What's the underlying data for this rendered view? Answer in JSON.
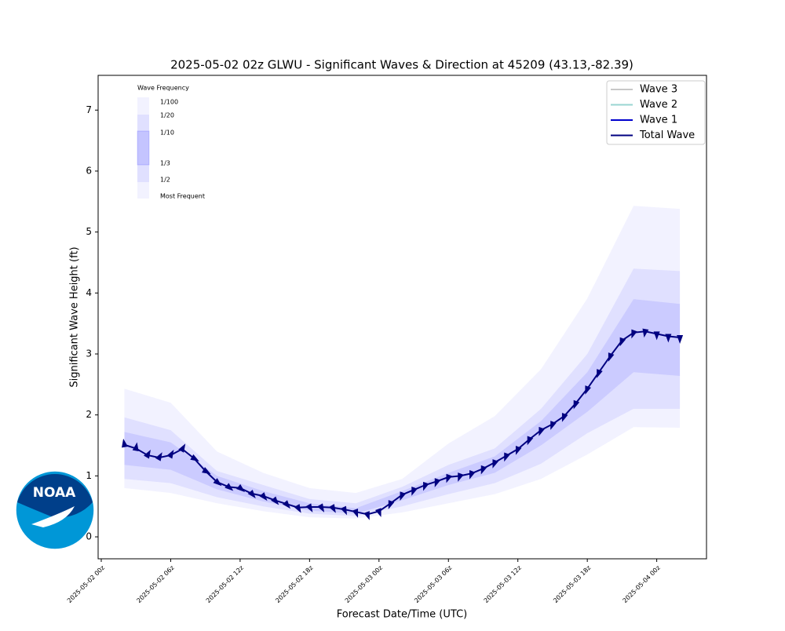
{
  "chart_data": {
    "type": "line",
    "title": "2025-05-02 02z GLWU - Significant Waves & Direction at 45209 (43.13,-82.39)",
    "y_label": "Significant Wave Height (ft)",
    "x_label": "Forecast Date/Time (UTC)",
    "xlim": [
      -0.27,
      52.3
    ],
    "ylim": [
      -0.36,
      7.57
    ],
    "xticks": [
      {
        "value": 0,
        "label": "2025-05-02 00z"
      },
      {
        "value": 6,
        "label": "2025-05-02 06z"
      },
      {
        "value": 12,
        "label": "2025-05-02 12z"
      },
      {
        "value": 18,
        "label": "2025-05-02 18z"
      },
      {
        "value": 24,
        "label": "2025-05-03 00z"
      },
      {
        "value": 30,
        "label": "2025-05-03 06z"
      },
      {
        "value": 36,
        "label": "2025-05-03 12z"
      },
      {
        "value": 42,
        "label": "2025-05-03 18z"
      },
      {
        "value": 48,
        "label": "2025-05-04 00z"
      }
    ],
    "yticks": [
      0,
      1,
      2,
      3,
      4,
      5,
      6,
      7
    ],
    "x": [
      2,
      3,
      4,
      5,
      6,
      7,
      8,
      9,
      10,
      11,
      12,
      13,
      14,
      15,
      16,
      17,
      18,
      19,
      20,
      21,
      22,
      23,
      24,
      25,
      26,
      27,
      28,
      29,
      30,
      31,
      32,
      33,
      34,
      35,
      36,
      37,
      38,
      39,
      40,
      41,
      42,
      43,
      44,
      45,
      46,
      47,
      48,
      49,
      50
    ],
    "series": [
      {
        "name": "Total Wave",
        "color": "#000080",
        "values": [
          1.51,
          1.45,
          1.34,
          1.3,
          1.34,
          1.44,
          1.29,
          1.08,
          0.9,
          0.82,
          0.8,
          0.71,
          0.67,
          0.6,
          0.54,
          0.48,
          0.49,
          0.49,
          0.48,
          0.45,
          0.41,
          0.37,
          0.42,
          0.55,
          0.69,
          0.77,
          0.85,
          0.91,
          0.98,
          1.0,
          1.04,
          1.12,
          1.22,
          1.33,
          1.44,
          1.6,
          1.75,
          1.85,
          1.98,
          2.19,
          2.43,
          2.7,
          2.97,
          3.22,
          3.35,
          3.37,
          3.33,
          3.29,
          3.27
        ],
        "directions": [
          350,
          10,
          30,
          30,
          30,
          30,
          120,
          120,
          130,
          130,
          130,
          140,
          140,
          140,
          140,
          150,
          150,
          150,
          150,
          155,
          160,
          160,
          160,
          200,
          200,
          200,
          200,
          200,
          200,
          200,
          200,
          200,
          200,
          200,
          200,
          200,
          200,
          200,
          200,
          200,
          200,
          200,
          200,
          200,
          200,
          190,
          180,
          180,
          180
        ]
      }
    ],
    "legend_items": [
      {
        "name": "Wave 3",
        "color": "#c8c8c8"
      },
      {
        "name": "Wave 2",
        "color": "#99d5d2"
      },
      {
        "name": "Wave 1",
        "color": "#0000cd"
      },
      {
        "name": "Total Wave",
        "color": "#000080"
      }
    ],
    "legend_position": "upper right",
    "band_x": [
      2,
      6,
      10,
      14,
      18,
      22,
      26,
      30,
      34,
      38,
      42,
      46,
      50
    ],
    "bands": [
      {
        "color": "#0000ff",
        "opacity": 0.05,
        "upper": [
          2.43,
          2.2,
          1.4,
          1.05,
          0.8,
          0.72,
          0.95,
          1.53,
          1.98,
          2.75,
          3.91,
          5.43,
          5.38
        ],
        "lower": [
          0.8,
          0.72,
          0.55,
          0.42,
          0.32,
          0.3,
          0.4,
          0.55,
          0.7,
          0.95,
          1.35,
          1.8,
          1.79
        ]
      },
      {
        "color": "#0000ff",
        "opacity": 0.07,
        "upper": [
          1.96,
          1.75,
          1.08,
          0.85,
          0.62,
          0.55,
          0.82,
          1.18,
          1.45,
          2.1,
          3.0,
          4.4,
          4.36
        ],
        "lower": [
          0.95,
          0.88,
          0.65,
          0.5,
          0.38,
          0.34,
          0.5,
          0.7,
          0.88,
          1.2,
          1.7,
          2.1,
          2.1
        ]
      },
      {
        "color": "#0000ff",
        "opacity": 0.09,
        "upper": [
          1.72,
          1.55,
          1.0,
          0.75,
          0.55,
          0.47,
          0.75,
          1.05,
          1.32,
          1.9,
          2.7,
          3.9,
          3.82
        ],
        "lower": [
          1.18,
          1.1,
          0.78,
          0.58,
          0.43,
          0.38,
          0.6,
          0.85,
          1.05,
          1.5,
          2.05,
          2.7,
          2.64
        ]
      }
    ],
    "frequency_key": {
      "title": "Wave Frequency",
      "labels": [
        "1/100",
        "1/20",
        "1/10",
        "1/3",
        "1/2",
        "Most Frequent"
      ]
    }
  },
  "logo_text": "NOAA"
}
